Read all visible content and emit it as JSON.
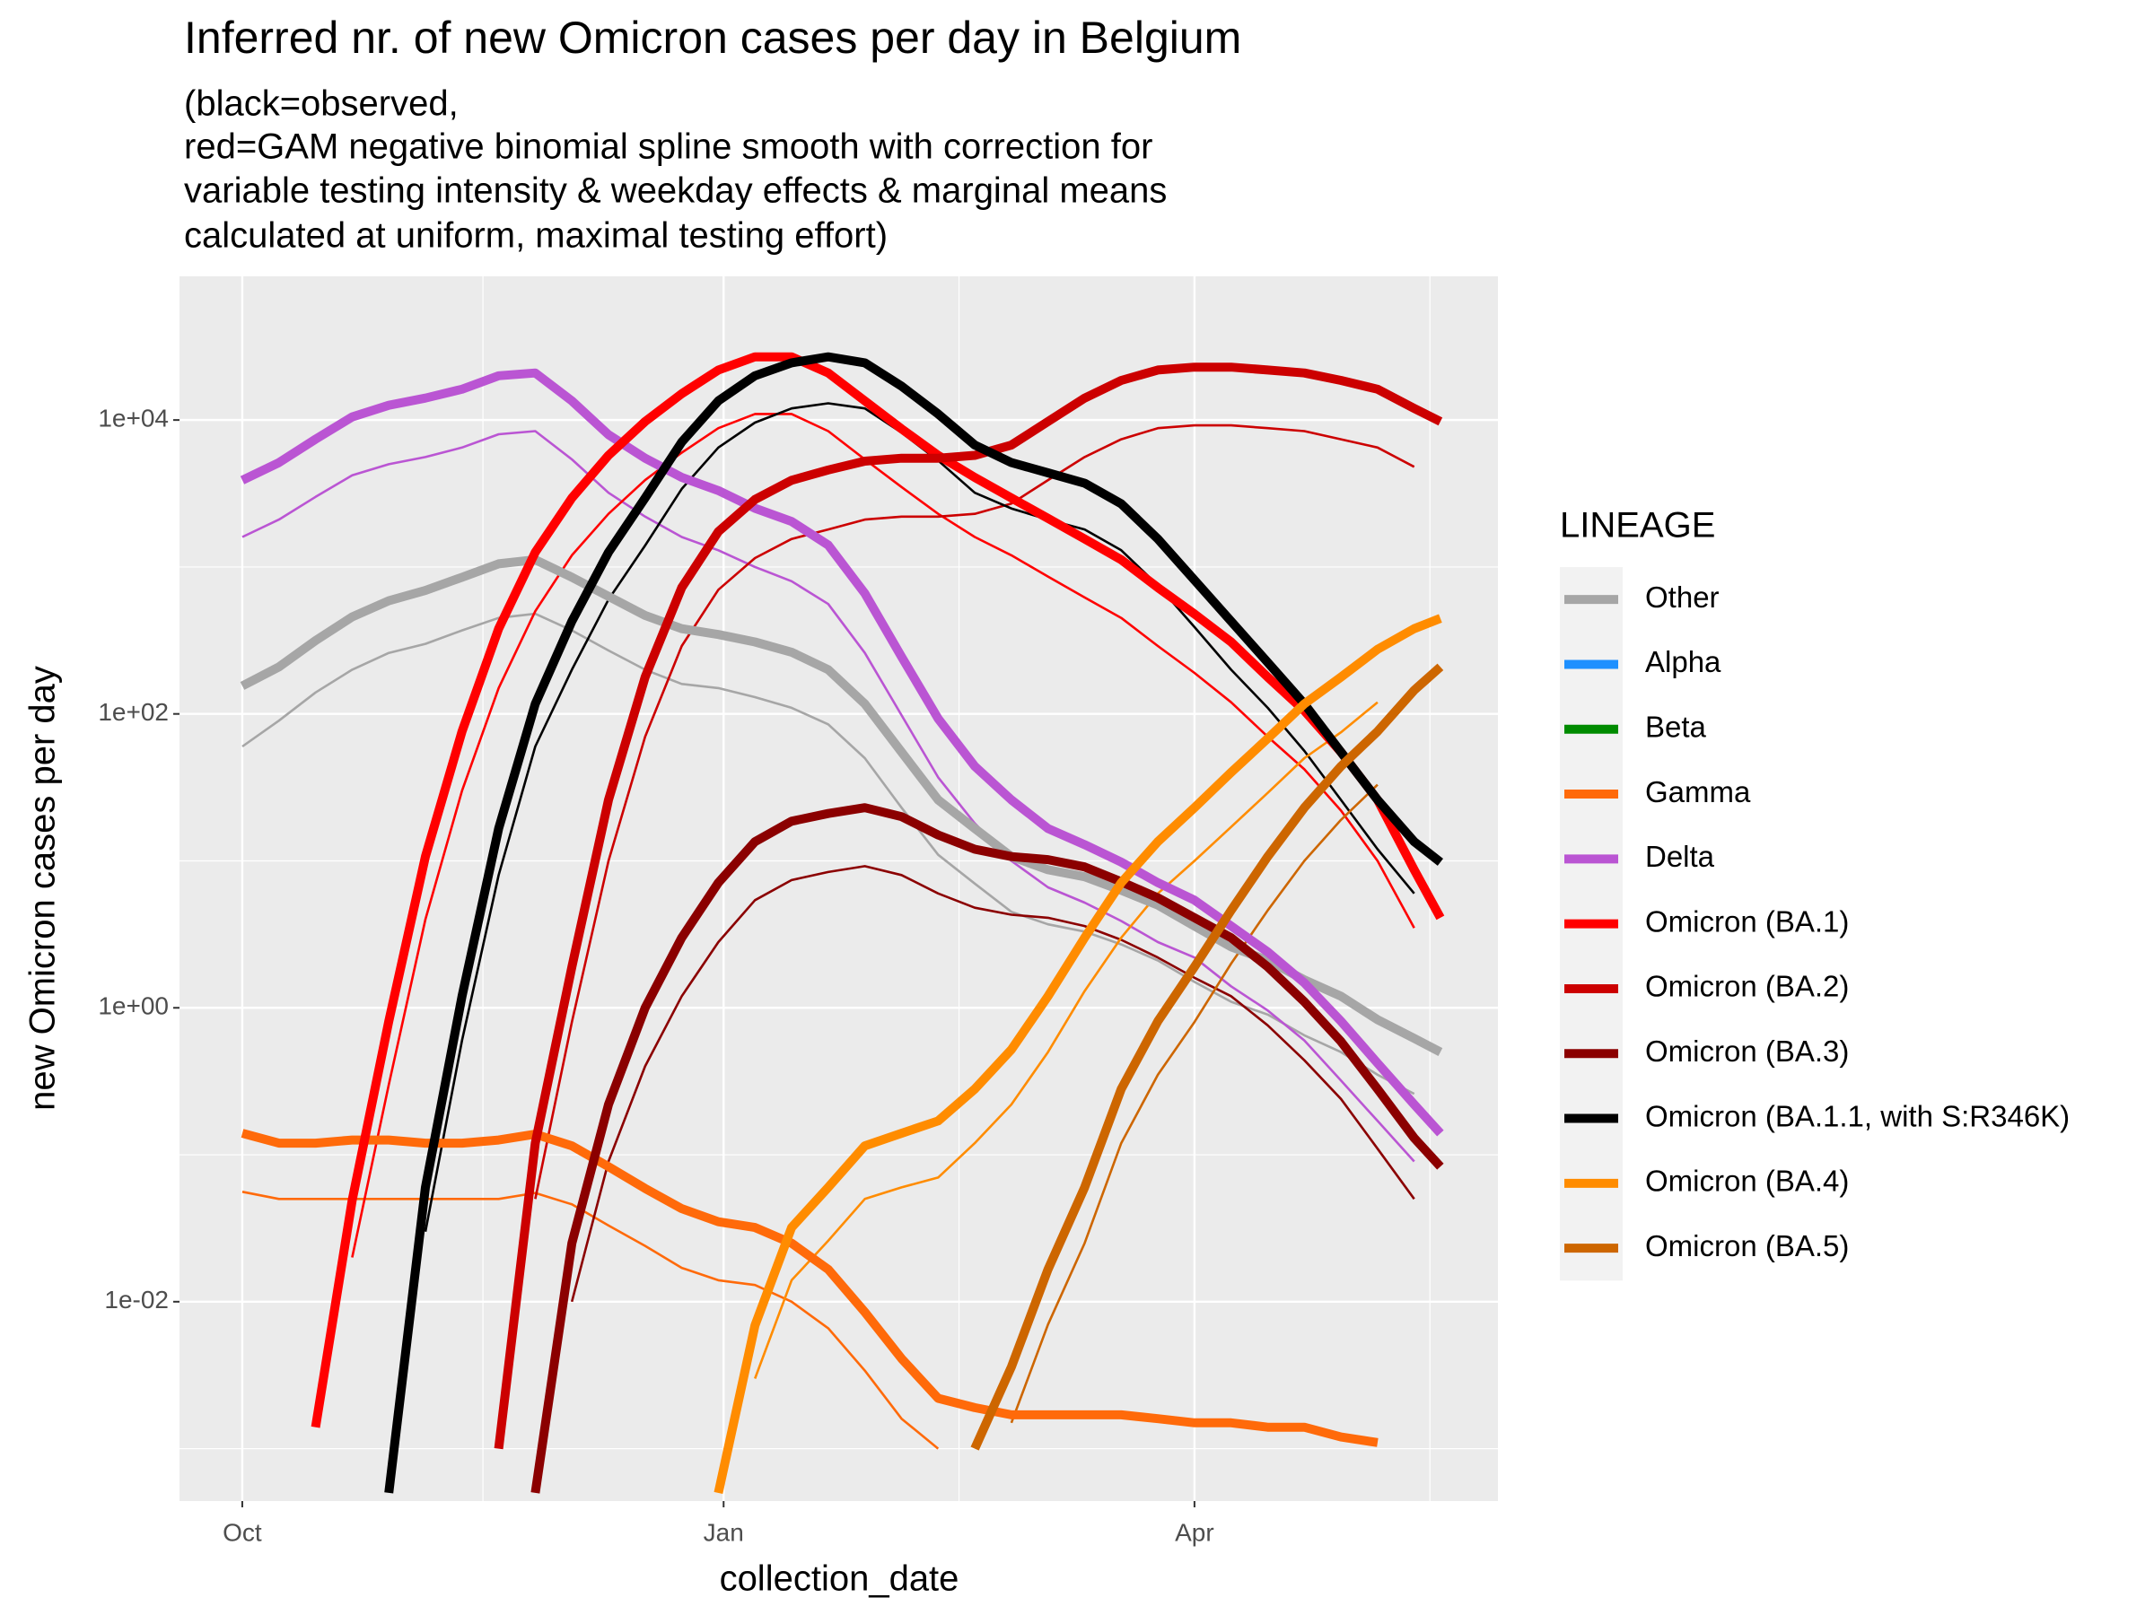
{
  "chart_data": {
    "type": "line",
    "title": "Inferred nr. of new Omicron cases per day in Belgium",
    "subtitle": [
      "(black=observed,",
      "red=GAM negative binomial spline smooth with correction for",
      "variable testing intensity & weekday effects & marginal means",
      "calculated at uniform, maximal testing effort)"
    ],
    "x_label": "collection_date",
    "y_label": "new Omicron cases per day",
    "y_scale": "log",
    "grid": true,
    "legend_title": "LINEAGE",
    "legend_position": "right",
    "xlim": [
      -12,
      240
    ],
    "xticks": [
      {
        "value": 0,
        "label": "Oct"
      },
      {
        "value": 92,
        "label": "Jan"
      },
      {
        "value": 182,
        "label": "Apr"
      }
    ],
    "ylim": [
      0.00044,
      95000
    ],
    "yticks": [
      {
        "value": 0.01,
        "label": "1e-02"
      },
      {
        "value": 1,
        "label": "1e+00"
      },
      {
        "value": 100,
        "label": "1e+02"
      },
      {
        "value": 10000,
        "label": "1e+04"
      }
    ],
    "x": [
      0,
      7,
      14,
      21,
      28,
      35,
      42,
      49,
      56,
      63,
      70,
      77,
      84,
      91,
      98,
      105,
      112,
      119,
      126,
      133,
      140,
      147,
      154,
      161,
      168,
      175,
      182,
      189,
      196,
      203,
      210,
      217,
      224,
      229
    ],
    "series": [
      {
        "name": "Other",
        "color": "#A6A6A6",
        "values": [
          155,
          209,
          316,
          457,
          589,
          692,
          851,
          1050,
          1120,
          851,
          631,
          468,
          380,
          347,
          309,
          263,
          200,
          117,
          55,
          26,
          16.6,
          10.7,
          8.7,
          7.8,
          6.3,
          5.0,
          3.6,
          2.6,
          2.1,
          1.55,
          1.2,
          0.83,
          0.62,
          0.5
        ],
        "observed": [
          60,
          90,
          140,
          200,
          260,
          300,
          370,
          450,
          480,
          370,
          270,
          200,
          160,
          150,
          130,
          110,
          85,
          50,
          23,
          11,
          7,
          4.5,
          3.7,
          3.3,
          2.7,
          2.1,
          1.5,
          1.1,
          0.9,
          0.65,
          0.5,
          0.35,
          0.26,
          null
        ]
      },
      {
        "name": "Alpha",
        "color": "#1E90FF"
      },
      {
        "name": "Beta",
        "color": "#008B00"
      },
      {
        "name": "Gamma",
        "color": "#FF6A0A",
        "values": [
          0.14,
          0.12,
          0.12,
          0.126,
          0.126,
          0.12,
          0.12,
          0.126,
          0.138,
          0.115,
          0.083,
          0.059,
          0.043,
          0.035,
          0.032,
          0.025,
          0.0166,
          0.0085,
          0.0041,
          0.0022,
          0.0019,
          0.0017,
          0.0017,
          0.0017,
          0.0017,
          0.0016,
          0.0015,
          0.0015,
          0.0014,
          0.0014,
          0.0012,
          0.0011,
          null,
          null
        ],
        "observed": [
          0.056,
          0.05,
          0.05,
          0.05,
          0.05,
          0.05,
          0.05,
          0.05,
          0.055,
          0.046,
          0.033,
          0.024,
          0.017,
          0.014,
          0.013,
          0.01,
          0.0066,
          0.0034,
          0.0016,
          0.001,
          null,
          null,
          null,
          null,
          null,
          null,
          null,
          null,
          null,
          null,
          null,
          null,
          null,
          null
        ]
      },
      {
        "name": "Delta",
        "color": "#BA55D3",
        "values": [
          3890,
          5130,
          7410,
          10500,
          12600,
          14100,
          16200,
          20000,
          20900,
          13500,
          7940,
          5500,
          4070,
          3310,
          2510,
          2040,
          1410,
          661,
          245,
          93,
          44,
          26,
          16.6,
          12.9,
          9.8,
          7.1,
          5.4,
          3.6,
          2.4,
          1.48,
          0.81,
          0.42,
          0.22,
          0.14
        ],
        "observed": [
          1600,
          2100,
          3000,
          4200,
          5000,
          5600,
          6500,
          8000,
          8400,
          5400,
          3200,
          2200,
          1600,
          1300,
          1000,
          800,
          560,
          260,
          98,
          37,
          18,
          10,
          6.6,
          5.2,
          3.9,
          2.8,
          2.2,
          1.4,
          0.96,
          0.6,
          0.32,
          0.17,
          0.09,
          null
        ]
      },
      {
        "name": "Omicron (BA.1)",
        "color": "#FF0000",
        "values": [
          null,
          null,
          0.0014,
          0.049,
          0.81,
          10.7,
          76,
          380,
          1260,
          2950,
          5750,
          9770,
          15100,
          21900,
          26900,
          26900,
          20900,
          13500,
          8710,
          5750,
          4070,
          2950,
          2140,
          1550,
          1120,
          724,
          479,
          309,
          178,
          105,
          55,
          26,
          8.7,
          4.1
        ],
        "observed": [
          null,
          null,
          null,
          0.02,
          0.3,
          4,
          30,
          150,
          500,
          1200,
          2300,
          3900,
          6000,
          8800,
          11000,
          11000,
          8400,
          5400,
          3500,
          2300,
          1600,
          1200,
          860,
          620,
          450,
          290,
          190,
          120,
          70,
          42,
          22,
          10,
          3.5,
          null
        ]
      },
      {
        "name": "Omicron (BA.2)",
        "color": "#CC0000",
        "values": [
          null,
          null,
          null,
          null,
          null,
          null,
          null,
          0.001,
          0.12,
          1.9,
          26,
          178,
          724,
          1740,
          2880,
          3890,
          4570,
          5250,
          5500,
          5500,
          5750,
          6760,
          9770,
          14100,
          18600,
          21900,
          22900,
          22900,
          21900,
          20900,
          18600,
          16200,
          12000,
          9770
        ],
        "observed": [
          null,
          null,
          null,
          null,
          null,
          null,
          null,
          null,
          0.05,
          0.8,
          10,
          70,
          290,
          700,
          1150,
          1550,
          1800,
          2100,
          2200,
          2200,
          2300,
          2700,
          3900,
          5600,
          7400,
          8800,
          9200,
          9200,
          8800,
          8400,
          7400,
          6500,
          4800,
          null
        ]
      },
      {
        "name": "Omicron (BA.3)",
        "color": "#8B0000",
        "values": [
          null,
          null,
          null,
          null,
          null,
          null,
          null,
          null,
          0.0005,
          0.025,
          0.22,
          1,
          3,
          7.1,
          13.5,
          18.6,
          21,
          23,
          20,
          15,
          12,
          10.7,
          10.2,
          9.1,
          7.2,
          5.6,
          4.1,
          3,
          1.9,
          1.1,
          0.59,
          0.28,
          0.13,
          0.083
        ],
        "observed": [
          null,
          null,
          null,
          null,
          null,
          null,
          null,
          null,
          null,
          0.01,
          0.09,
          0.4,
          1.2,
          2.8,
          5.4,
          7.4,
          8.4,
          9.2,
          8,
          6,
          4.8,
          4.3,
          4.1,
          3.6,
          2.9,
          2.2,
          1.6,
          1.2,
          0.76,
          0.44,
          0.24,
          0.11,
          0.05,
          null
        ]
      },
      {
        "name": "Omicron (BA.1.1, with S:R346K)",
        "color": "#000000",
        "values": [
          null,
          null,
          null,
          null,
          0.0005,
          0.06,
          1.2,
          16.6,
          117,
          427,
          1260,
          2950,
          7080,
          13500,
          20000,
          24500,
          26900,
          24500,
          17000,
          11000,
          6760,
          5130,
          4370,
          3720,
          2690,
          1550,
          813,
          427,
          224,
          117,
          55,
          26,
          13.5,
          9.8
        ],
        "observed": [
          null,
          null,
          null,
          null,
          null,
          0.03,
          0.6,
          8,
          60,
          200,
          600,
          1400,
          3400,
          6500,
          9600,
          12000,
          13000,
          12000,
          8200,
          5300,
          3200,
          2500,
          2100,
          1800,
          1300,
          750,
          390,
          200,
          110,
          56,
          26,
          12,
          6,
          null
        ]
      },
      {
        "name": "Omicron (BA.4)",
        "color": "#FF8C00",
        "values": [
          null,
          null,
          null,
          null,
          null,
          null,
          null,
          null,
          null,
          null,
          null,
          null,
          null,
          0.0005,
          0.0069,
          0.032,
          0.06,
          0.115,
          0.14,
          0.17,
          0.28,
          0.52,
          1.2,
          3,
          7.1,
          13.5,
          23,
          40,
          68,
          117,
          178,
          275,
          380,
          447
        ],
        "observed": [
          null,
          null,
          null,
          null,
          null,
          null,
          null,
          null,
          null,
          null,
          null,
          null,
          null,
          null,
          0.003,
          0.014,
          0.026,
          0.05,
          0.06,
          0.07,
          0.12,
          0.22,
          0.5,
          1.3,
          3,
          6,
          10,
          17,
          29,
          50,
          75,
          120,
          null,
          null
        ]
      },
      {
        "name": "Omicron (BA.5)",
        "color": "#CD6600",
        "values": [
          null,
          null,
          null,
          null,
          null,
          null,
          null,
          null,
          null,
          null,
          null,
          null,
          null,
          null,
          null,
          null,
          null,
          null,
          null,
          null,
          0.001,
          0.0036,
          0.0166,
          0.06,
          0.28,
          0.81,
          1.9,
          4.6,
          10.7,
          23,
          44,
          76,
          145,
          209
        ],
        "observed": [
          null,
          null,
          null,
          null,
          null,
          null,
          null,
          null,
          null,
          null,
          null,
          null,
          null,
          null,
          null,
          null,
          null,
          null,
          null,
          null,
          null,
          0.0015,
          0.007,
          0.025,
          0.12,
          0.35,
          0.8,
          2,
          4.6,
          10,
          19,
          33,
          null,
          null
        ]
      }
    ]
  }
}
